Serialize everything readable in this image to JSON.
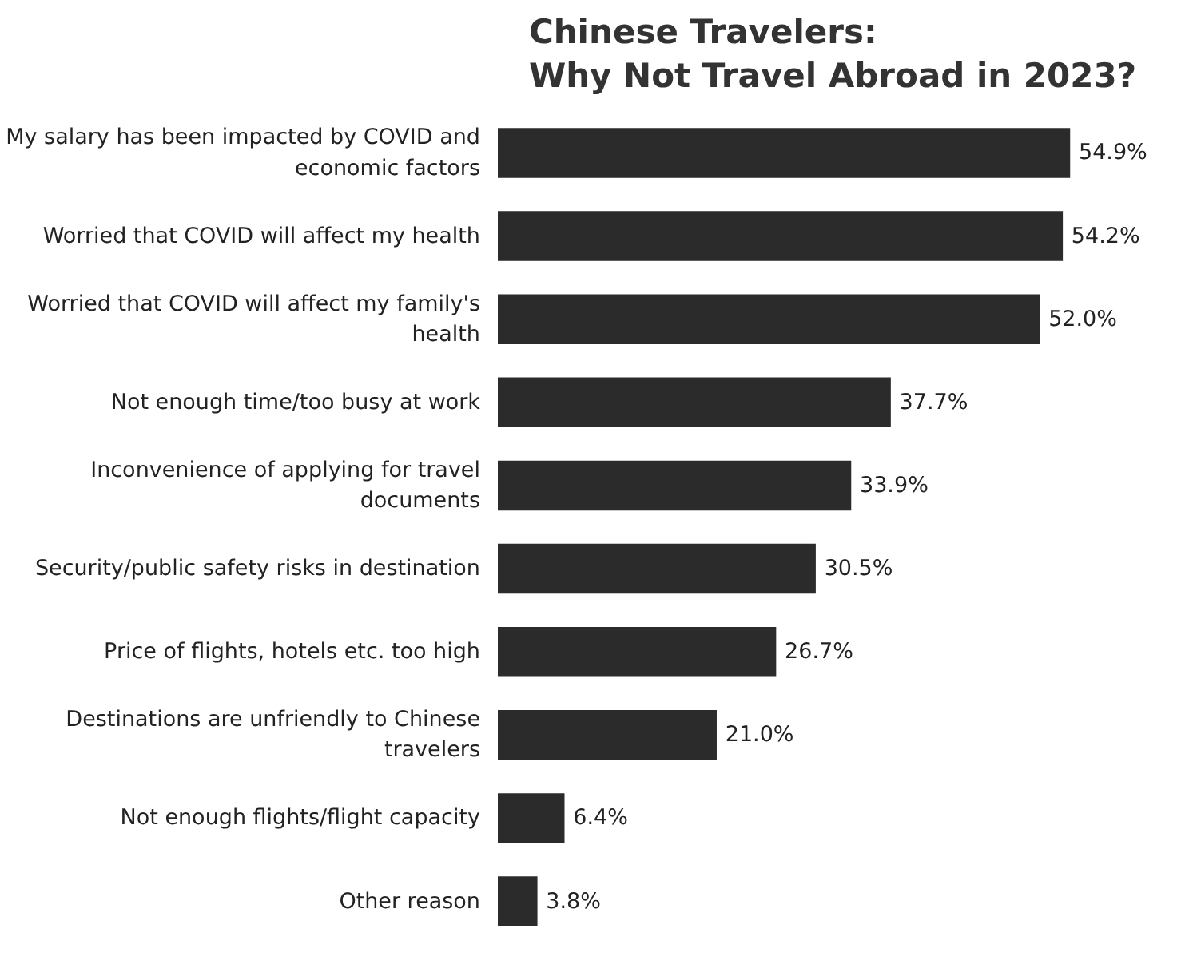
{
  "chart_data": {
    "type": "bar",
    "orientation": "horizontal",
    "title": "Chinese Travelers: Why Not Travel Abroad in 2023?",
    "categories": [
      "My salary has been impacted by COVID and economic factors",
      "Worried that COVID will affect my health",
      "Worried that COVID will affect my family's health",
      "Not enough time/too busy at work",
      "Inconvenience of applying for travel documents",
      "Security/public safety risks in destination",
      "Price of flights, hotels etc. too high",
      "Destinations are unfriendly to Chinese travelers",
      "Not enough flights/flight capacity",
      "Other reason"
    ],
    "values": [
      54.9,
      54.2,
      52.0,
      37.7,
      33.9,
      30.5,
      26.7,
      21.0,
      6.4,
      3.8
    ],
    "value_labels": [
      "54.9%",
      "54.2%",
      "52.0%",
      "37.7%",
      "33.9%",
      "30.5%",
      "26.7%",
      "21.0%",
      "6.4%",
      "3.8%"
    ],
    "color": "#2b2b2b",
    "grid": false
  }
}
